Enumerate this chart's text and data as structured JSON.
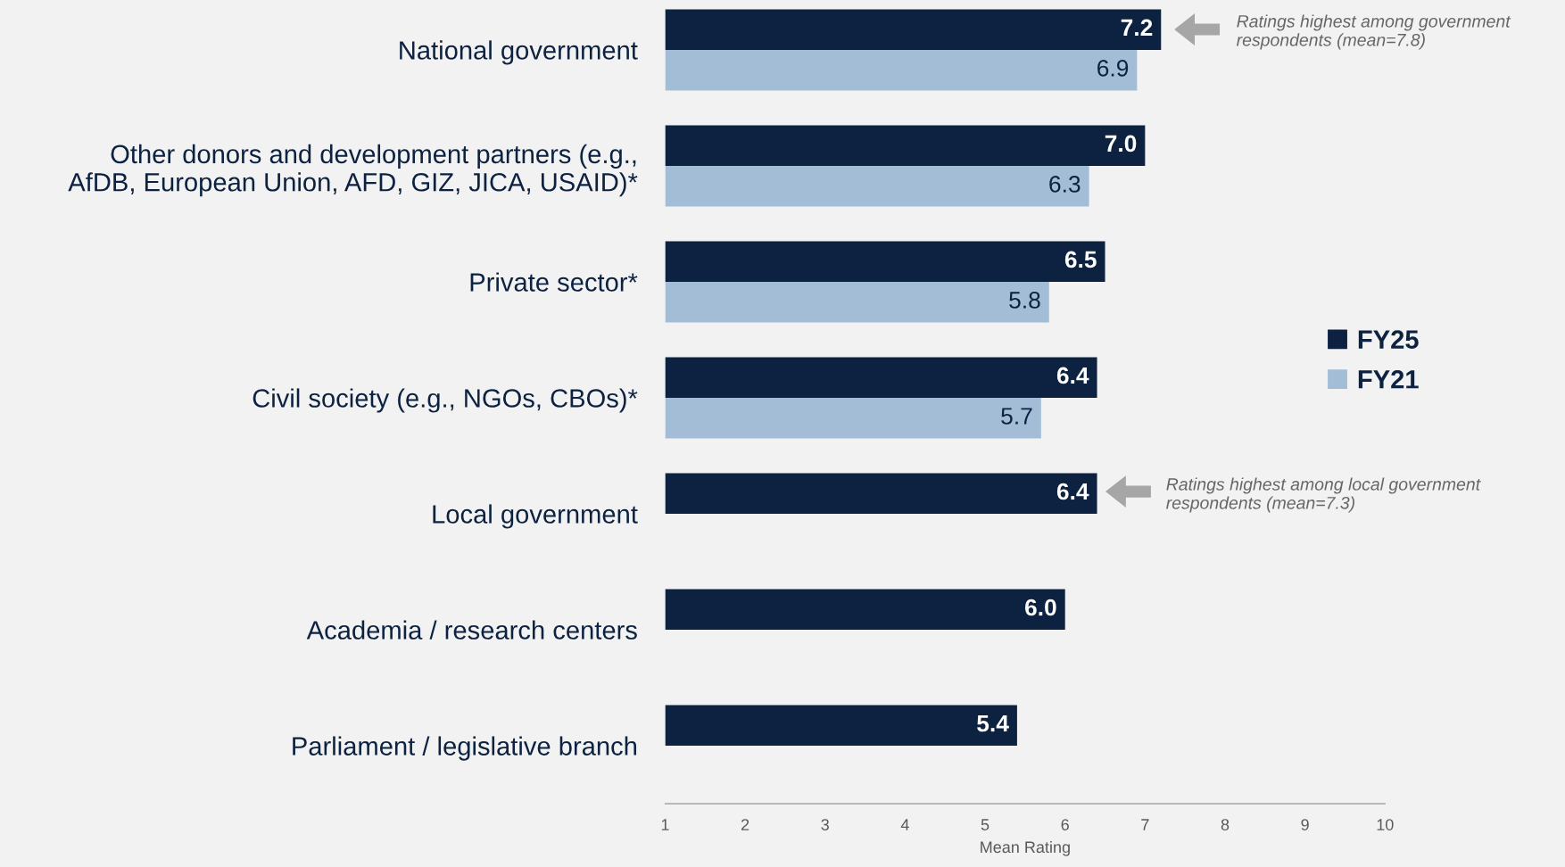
{
  "chart_data": {
    "type": "bar",
    "orientation": "horizontal",
    "categories": [
      "National government",
      "Other donors and development partners (e.g.,\nAfDB, European Union, AFD, GIZ, JICA, USAID)*",
      "Private sector*",
      "Civil society (e.g., NGOs, CBOs)*",
      "Local government",
      "Academia / research centers",
      "Parliament / legislative branch"
    ],
    "series": [
      {
        "name": "FY25",
        "color": "#0d2240",
        "values": [
          7.2,
          7.0,
          6.5,
          6.4,
          6.4,
          6.0,
          5.4
        ],
        "value_labels": [
          "7.2",
          "7.0",
          "6.5",
          "6.4",
          "6.4",
          "6.0",
          "5.4"
        ]
      },
      {
        "name": "FY21",
        "color": "#a3bdd6",
        "values": [
          6.9,
          6.3,
          5.8,
          5.7,
          null,
          null,
          null
        ],
        "value_labels": [
          "6.9",
          "6.3",
          "5.8",
          "5.7",
          null,
          null,
          null
        ]
      }
    ],
    "xlim": [
      1,
      10
    ],
    "xticks": [
      1,
      2,
      3,
      4,
      5,
      6,
      7,
      8,
      9,
      10
    ],
    "xlabel": "Mean Rating",
    "legend": "right",
    "grid": false,
    "annotations": [
      "Ratings highest among government\nrespondents (mean=7.8)",
      "Ratings highest among local government\nrespondents (mean=7.3)"
    ]
  }
}
